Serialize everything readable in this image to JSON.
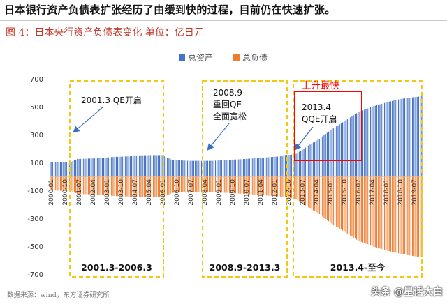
{
  "headline": "日本银行资产负债表扩张经历了由缓到快的过程，目前仍在快速扩张。",
  "figure_title": "图 4：日本央行资产负债表变化  单位：亿日元",
  "source": "数据来源：wind，东方证券研究所",
  "watermark": "头条 @星话大白",
  "colors": {
    "assets": "#4472c4",
    "liabilities": "#ed7d31",
    "box_dashed": "#f2c811",
    "box_red": "#ff0000",
    "annotation_red": "#ff0000"
  },
  "chart_data": {
    "type": "bar",
    "title": "",
    "xlabel": "",
    "ylabel": "",
    "ylim": [
      -700,
      700
    ],
    "yticks": [
      700,
      500,
      300,
      100,
      -100,
      -300,
      -500,
      -700
    ],
    "grid": false,
    "legend_position": "top",
    "x_start": "2000-01",
    "x_end": "2019-12",
    "x_tick_labels": [
      "2000-01",
      "2000-10",
      "2001-07",
      "2002-04",
      "2003-01",
      "2003-10",
      "2004-07",
      "2005-04",
      "2006-01",
      "2006-10",
      "2007-07",
      "2008-04",
      "2009-01",
      "2009-10",
      "2010-07",
      "2011-04",
      "2012-01",
      "2012-10",
      "2013-07",
      "2014-04",
      "2015-01",
      "2015-10",
      "2016-07",
      "2017-04",
      "2018-01",
      "2018-10",
      "2019-07"
    ],
    "series": [
      {
        "name": "总资产",
        "points": [
          [
            "2000-01",
            100
          ],
          [
            "2001-02",
            105
          ],
          [
            "2001-06",
            125
          ],
          [
            "2002-06",
            130
          ],
          [
            "2003-06",
            140
          ],
          [
            "2004-06",
            145
          ],
          [
            "2005-06",
            148
          ],
          [
            "2006-01",
            148
          ],
          [
            "2006-04",
            135
          ],
          [
            "2006-07",
            118
          ],
          [
            "2007-06",
            112
          ],
          [
            "2008-09",
            112
          ],
          [
            "2009-06",
            118
          ],
          [
            "2010-06",
            125
          ],
          [
            "2011-06",
            135
          ],
          [
            "2012-06",
            145
          ],
          [
            "2013-03",
            162
          ],
          [
            "2013-10",
            215
          ],
          [
            "2014-06",
            270
          ],
          [
            "2015-01",
            330
          ],
          [
            "2015-10",
            395
          ],
          [
            "2016-07",
            460
          ],
          [
            "2017-04",
            500
          ],
          [
            "2018-01",
            530
          ],
          [
            "2018-10",
            555
          ],
          [
            "2019-12",
            575
          ]
        ]
      },
      {
        "name": "总负债",
        "points": [
          [
            "2000-01",
            -100
          ],
          [
            "2001-02",
            -105
          ],
          [
            "2001-06",
            -125
          ],
          [
            "2002-06",
            -130
          ],
          [
            "2003-06",
            -140
          ],
          [
            "2004-06",
            -145
          ],
          [
            "2005-06",
            -148
          ],
          [
            "2006-01",
            -148
          ],
          [
            "2006-04",
            -135
          ],
          [
            "2006-07",
            -118
          ],
          [
            "2007-06",
            -112
          ],
          [
            "2008-09",
            -112
          ],
          [
            "2009-06",
            -118
          ],
          [
            "2010-06",
            -125
          ],
          [
            "2011-06",
            -135
          ],
          [
            "2012-06",
            -145
          ],
          [
            "2013-03",
            -162
          ],
          [
            "2013-10",
            -215
          ],
          [
            "2014-06",
            -270
          ],
          [
            "2015-01",
            -330
          ],
          [
            "2015-10",
            -395
          ],
          [
            "2016-07",
            -460
          ],
          [
            "2017-04",
            -500
          ],
          [
            "2018-01",
            -530
          ],
          [
            "2018-10",
            -555
          ],
          [
            "2019-12",
            -580
          ]
        ]
      }
    ],
    "period_boxes": [
      {
        "label": "2001.3-2006.3",
        "start": "2001-03",
        "end": "2006-03"
      },
      {
        "label": "2008.9-2013.3",
        "start": "2008-09",
        "end": "2013-03"
      },
      {
        "label": "2013.4-至今",
        "start": "2013-04",
        "end": "2019-12"
      }
    ],
    "annotations": [
      {
        "text": [
          "2001.3 QE开启"
        ]
      },
      {
        "text": [
          "2008.9",
          "重回QE",
          "全面宽松"
        ]
      },
      {
        "text": [
          "2013.4",
          "QQE开启"
        ]
      },
      {
        "text": [
          "上升最快"
        ]
      }
    ]
  }
}
